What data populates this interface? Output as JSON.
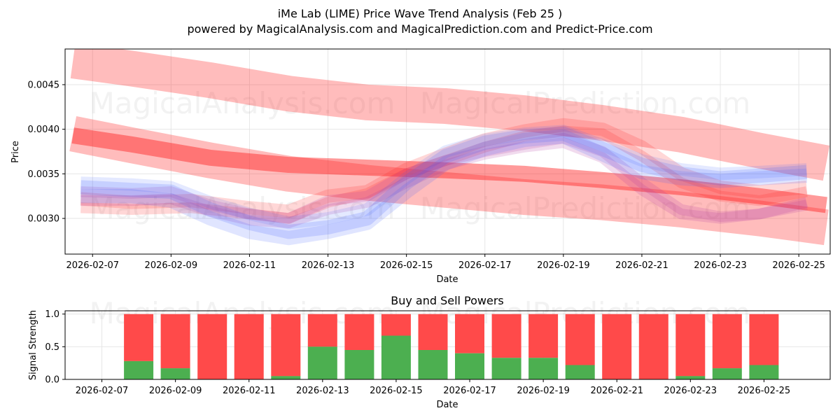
{
  "colors": {
    "buy": "#4caf50",
    "sell": "#ff4a4a",
    "wave_red": "#ff2020",
    "wave_blue": "#4060ff"
  },
  "watermark": [
    "MagicalAnalysis.com",
    "MagicalPrediction.com"
  ],
  "chart_data": [
    {
      "type": "line",
      "title": "iMe Lab (LIME) Price Wave Trend Analysis (Feb 25 )",
      "subtitle": "powered by MagicalAnalysis.com and MagicalPrediction.com and Predict-Price.com",
      "xlabel": "Date",
      "ylabel": "Price",
      "x_ticks": [
        "2026-02-07",
        "2026-02-09",
        "2026-02-11",
        "2026-02-13",
        "2026-02-15",
        "2026-02-17",
        "2026-02-19",
        "2026-02-21",
        "2026-02-23",
        "2026-02-25"
      ],
      "y_ticks": [
        "0.0030",
        "0.0035",
        "0.0040",
        "0.0045"
      ],
      "y_tick_values": [
        0.003,
        0.0035,
        0.004,
        0.0045
      ],
      "xlim_days": [
        6.3,
        25.8
      ],
      "ylim": [
        0.0026,
        0.0049
      ],
      "series": [
        {
          "name": "trend-band-upper",
          "color": "red",
          "alpha": 0.3,
          "width": 0.0004,
          "x": [
            6.5,
            8,
            10,
            12,
            14,
            16,
            18,
            20,
            22,
            24,
            25.7
          ],
          "y": [
            0.00477,
            0.00468,
            0.00455,
            0.0044,
            0.0043,
            0.00426,
            0.00418,
            0.00407,
            0.00394,
            0.00376,
            0.00362
          ]
        },
        {
          "name": "trend-band-middle",
          "color": "red",
          "alpha": 0.3,
          "width": 0.0004,
          "x": [
            6.5,
            8,
            10,
            12,
            14,
            16,
            18,
            20,
            22,
            24,
            25.7
          ],
          "y": [
            0.00395,
            0.00382,
            0.00365,
            0.0035,
            0.0034,
            0.00332,
            0.00324,
            0.00318,
            0.0031,
            0.003,
            0.0029
          ]
        },
        {
          "name": "trend-band-core",
          "color": "red",
          "alpha": 0.45,
          "width": 0.00018,
          "x": [
            6.5,
            8,
            10,
            12,
            14,
            16,
            18,
            20,
            22,
            24,
            25.7
          ],
          "y": [
            0.00393,
            0.00383,
            0.00368,
            0.0036,
            0.00357,
            0.00354,
            0.0035,
            0.00343,
            0.00335,
            0.00325,
            0.00315
          ]
        },
        {
          "name": "wave-red-1",
          "color": "red",
          "alpha": 0.18,
          "width": 0.00015,
          "x": [
            6.7,
            8,
            9.5,
            11,
            12,
            13,
            14,
            15,
            16,
            17,
            18,
            19,
            20,
            21,
            22,
            23,
            24,
            25.2
          ],
          "y": [
            0.00322,
            0.00318,
            0.0032,
            0.00312,
            0.00308,
            0.00325,
            0.0033,
            0.00355,
            0.00372,
            0.00388,
            0.00398,
            0.00405,
            0.004,
            0.0038,
            0.0035,
            0.00335,
            0.0033,
            0.00335
          ]
        },
        {
          "name": "wave-red-2",
          "color": "red",
          "alpha": 0.18,
          "width": 0.00012,
          "x": [
            6.7,
            8,
            9.5,
            11,
            12,
            13,
            14,
            15,
            16,
            17,
            18,
            19,
            20,
            21,
            22,
            23,
            24,
            25.2
          ],
          "y": [
            0.00312,
            0.0031,
            0.00312,
            0.00305,
            0.003,
            0.00318,
            0.00328,
            0.0035,
            0.00365,
            0.0038,
            0.00392,
            0.00398,
            0.00395,
            0.0037,
            0.0034,
            0.00325,
            0.0032,
            0.0033
          ]
        },
        {
          "name": "wave-purple-1",
          "color": "purple",
          "alpha": 0.18,
          "width": 0.00012,
          "x": [
            6.7,
            8,
            9,
            10,
            11,
            12,
            13,
            14,
            15,
            16,
            17,
            18,
            19,
            20,
            21,
            22,
            23,
            24,
            25.2
          ],
          "y": [
            0.0033,
            0.00328,
            0.0033,
            0.00315,
            0.00305,
            0.003,
            0.0032,
            0.00325,
            0.0035,
            0.00365,
            0.00375,
            0.00383,
            0.0039,
            0.00375,
            0.0034,
            0.0031,
            0.00302,
            0.00305,
            0.00318
          ]
        },
        {
          "name": "wave-purple-2",
          "color": "purple",
          "alpha": 0.18,
          "width": 0.00012,
          "x": [
            6.7,
            8,
            9,
            10,
            11,
            12,
            13,
            14,
            15,
            16,
            17,
            18,
            19,
            20,
            21,
            22,
            23,
            24,
            25.2
          ],
          "y": [
            0.0032,
            0.0032,
            0.00322,
            0.00308,
            0.00298,
            0.00295,
            0.0031,
            0.00318,
            0.0034,
            0.0036,
            0.00372,
            0.0038,
            0.00385,
            0.00368,
            0.00332,
            0.00305,
            0.003,
            0.00305,
            0.00315
          ]
        },
        {
          "name": "wave-blue-1",
          "color": "blue",
          "alpha": 0.18,
          "width": 0.00016,
          "x": [
            6.7,
            8,
            9,
            10,
            11,
            12,
            13,
            14,
            15,
            16,
            17,
            18,
            19,
            20,
            21,
            22,
            23,
            24,
            25.2
          ],
          "y": [
            0.00335,
            0.00332,
            0.0033,
            0.0031,
            0.00295,
            0.00285,
            0.0029,
            0.003,
            0.0034,
            0.0037,
            0.00385,
            0.00392,
            0.00395,
            0.00378,
            0.0036,
            0.0035,
            0.00345,
            0.00348,
            0.00352
          ]
        },
        {
          "name": "wave-blue-2",
          "color": "blue",
          "alpha": 0.16,
          "width": 0.00016,
          "x": [
            6.7,
            8,
            9,
            10,
            11,
            12,
            13,
            14,
            15,
            16,
            17,
            18,
            19,
            20,
            21,
            22,
            23,
            24,
            25.2
          ],
          "y": [
            0.00325,
            0.00325,
            0.0032,
            0.003,
            0.00285,
            0.00278,
            0.00285,
            0.00295,
            0.0033,
            0.00362,
            0.00378,
            0.00388,
            0.00392,
            0.00372,
            0.00352,
            0.00345,
            0.00342,
            0.00345,
            0.00348
          ]
        },
        {
          "name": "wave-blue-3",
          "color": "blue",
          "alpha": 0.14,
          "width": 0.00014,
          "x": [
            6.7,
            8,
            9,
            10,
            11,
            12,
            13,
            14,
            15,
            16,
            17,
            18,
            19,
            20,
            21,
            22,
            23,
            24,
            25.2
          ],
          "y": [
            0.0034,
            0.00338,
            0.00335,
            0.00318,
            0.00305,
            0.00295,
            0.003,
            0.0031,
            0.00345,
            0.00375,
            0.00388,
            0.00395,
            0.00398,
            0.00382,
            0.00365,
            0.00355,
            0.0035,
            0.00352,
            0.00355
          ]
        }
      ]
    },
    {
      "type": "bar",
      "title": "Buy and Sell Powers",
      "xlabel": "Date",
      "ylabel": "Signal Strength",
      "x_ticks": [
        "2026-02-07",
        "2026-02-09",
        "2026-02-11",
        "2026-02-13",
        "2026-02-15",
        "2026-02-17",
        "2026-02-19",
        "2026-02-21",
        "2026-02-23",
        "2026-02-25"
      ],
      "y_ticks": [
        "0.0",
        "0.5",
        "1.0"
      ],
      "ylim": [
        0,
        1.05
      ],
      "categories": [
        "2026-02-08",
        "2026-02-09",
        "2026-02-10",
        "2026-02-11",
        "2026-02-12",
        "2026-02-13",
        "2026-02-14",
        "2026-02-15",
        "2026-02-16",
        "2026-02-17",
        "2026-02-18",
        "2026-02-19",
        "2026-02-20",
        "2026-02-21",
        "2026-02-22",
        "2026-02-23",
        "2026-02-24",
        "2026-02-25"
      ],
      "series": [
        {
          "name": "Buy",
          "values": [
            0.28,
            0.17,
            0.0,
            0.0,
            0.05,
            0.5,
            0.45,
            0.67,
            0.45,
            0.4,
            0.33,
            0.33,
            0.22,
            0.0,
            0.0,
            0.05,
            0.17,
            0.22
          ]
        },
        {
          "name": "Sell",
          "values": [
            0.72,
            0.83,
            1.0,
            1.0,
            0.95,
            0.5,
            0.55,
            0.33,
            0.55,
            0.6,
            0.67,
            0.67,
            0.78,
            1.0,
            1.0,
            0.95,
            0.83,
            0.78
          ]
        }
      ]
    }
  ]
}
